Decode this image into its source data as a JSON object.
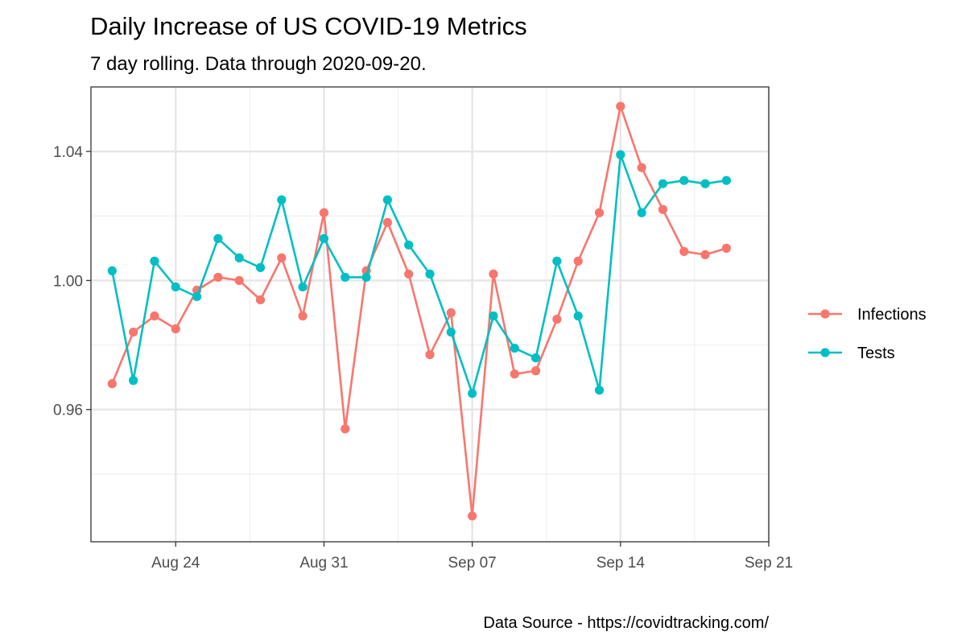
{
  "chart_data": {
    "type": "line",
    "title": "Daily Increase of US COVID-19 Metrics",
    "subtitle": "7 day rolling. Data through 2020-09-20.",
    "caption": "Data Source - https://covidtracking.com/",
    "xlabel": "",
    "ylabel": "",
    "x_axis_type": "date",
    "x": [
      "2020-08-21",
      "2020-08-22",
      "2020-08-23",
      "2020-08-24",
      "2020-08-25",
      "2020-08-26",
      "2020-08-27",
      "2020-08-28",
      "2020-08-29",
      "2020-08-30",
      "2020-08-31",
      "2020-09-01",
      "2020-09-02",
      "2020-09-03",
      "2020-09-04",
      "2020-09-05",
      "2020-09-06",
      "2020-09-07",
      "2020-09-08",
      "2020-09-09",
      "2020-09-10",
      "2020-09-11",
      "2020-09-12",
      "2020-09-13",
      "2020-09-14",
      "2020-09-15",
      "2020-09-16",
      "2020-09-17",
      "2020-09-18",
      "2020-09-19",
      "2020-09-20"
    ],
    "xlim": [
      "2020-08-20",
      "2020-09-21"
    ],
    "ylim": [
      0.919,
      1.06
    ],
    "x_ticks": [
      {
        "value": "2020-08-24",
        "label": "Aug 24"
      },
      {
        "value": "2020-08-31",
        "label": "Aug 31"
      },
      {
        "value": "2020-09-07",
        "label": "Sep 07"
      },
      {
        "value": "2020-09-14",
        "label": "Sep 14"
      },
      {
        "value": "2020-09-21",
        "label": "Sep 21"
      }
    ],
    "x_minor_ticks": [
      "2020-08-27T12:00",
      "2020-09-03T12:00",
      "2020-09-10T12:00",
      "2020-09-17T12:00"
    ],
    "y_ticks": [
      {
        "value": 0.96,
        "label": "0.96"
      },
      {
        "value": 1.0,
        "label": "1.00"
      },
      {
        "value": 1.04,
        "label": "1.04"
      }
    ],
    "y_minor_ticks": [
      0.94,
      0.98,
      1.02
    ],
    "grid": true,
    "legend_position": "right",
    "series": [
      {
        "name": "Infections",
        "color": "#F8766D",
        "values": [
          0.968,
          0.984,
          0.989,
          0.985,
          0.997,
          1.001,
          1.0,
          0.994,
          1.007,
          0.989,
          1.021,
          0.954,
          1.003,
          1.018,
          1.002,
          0.977,
          0.99,
          0.927,
          1.002,
          0.971,
          0.972,
          0.988,
          1.006,
          1.021,
          1.054,
          1.035,
          1.022,
          1.009,
          1.008,
          1.01,
          null
        ]
      },
      {
        "name": "Tests",
        "color": "#00BFC4",
        "values": [
          1.003,
          0.969,
          1.006,
          0.998,
          0.995,
          1.013,
          1.007,
          1.004,
          1.025,
          0.998,
          1.013,
          1.001,
          1.001,
          1.025,
          1.011,
          1.002,
          0.984,
          0.965,
          0.989,
          0.979,
          0.976,
          1.006,
          0.989,
          0.966,
          1.039,
          1.021,
          1.03,
          1.031,
          1.03,
          1.031,
          null
        ]
      }
    ]
  }
}
